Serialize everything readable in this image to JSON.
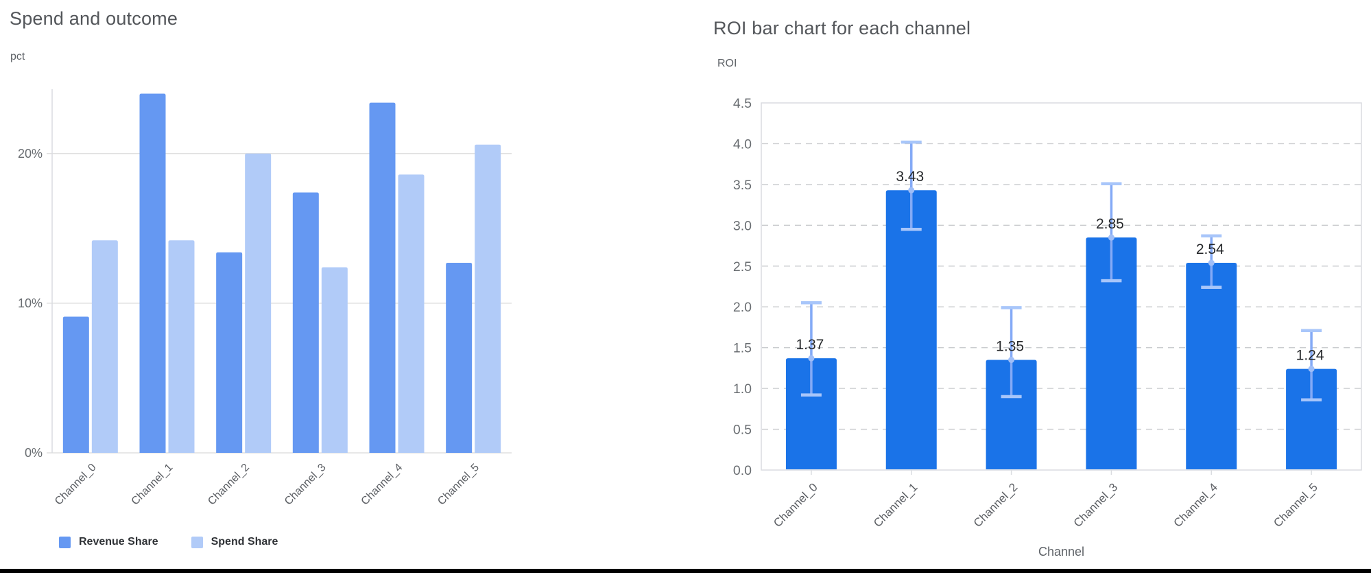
{
  "theme": {
    "background": "#FFFFFF",
    "title_color": "#53565A",
    "axis_unit_color": "#5F6368",
    "ytick_color": "#696D71",
    "xtick_color": "#5B5E63",
    "value_label_color": "#26282B",
    "legend_text_color": "#2F3236",
    "grid_color": "#E0E0E0",
    "axis_line_color": "#DADCE0",
    "dashed_grid_color": "#C9CBCE",
    "bottom_border_color": "#000000"
  },
  "chart_data": [
    {
      "type": "bar",
      "title": "Spend and outcome",
      "ylabel": "pct",
      "xlabel": "",
      "categories": [
        "Channel_0",
        "Channel_1",
        "Channel_2",
        "Channel_3",
        "Channel_4",
        "Channel_5"
      ],
      "series": [
        {
          "name": "Revenue Share",
          "color": "#6598F2",
          "values": [
            9.1,
            24.0,
            13.4,
            17.4,
            23.4,
            12.7
          ]
        },
        {
          "name": "Spend Share",
          "color": "#B1CBF8",
          "values": [
            14.2,
            14.2,
            20.0,
            12.4,
            18.6,
            20.6
          ]
        }
      ],
      "value_suffix": "%",
      "ylim": [
        0,
        24.3
      ],
      "yticks": [
        {
          "value": 0,
          "label": "0%"
        },
        {
          "value": 10,
          "label": "10%"
        },
        {
          "value": 20,
          "label": "20%"
        }
      ],
      "grid": "solid horizontal",
      "legend_position": "bottom-left"
    },
    {
      "type": "bar",
      "title": "ROI bar chart for each channel",
      "ylabel": "ROI",
      "xlabel": "Channel",
      "categories": [
        "Channel_0",
        "Channel_1",
        "Channel_2",
        "Channel_3",
        "Channel_4",
        "Channel_5"
      ],
      "series": [
        {
          "name": "ROI",
          "color": "#1A73E8",
          "values": [
            1.37,
            3.43,
            1.35,
            2.85,
            2.54,
            1.24
          ]
        }
      ],
      "value_labels": [
        "1.37",
        "3.43",
        "1.35",
        "2.85",
        "2.54",
        "1.24"
      ],
      "error_bars": {
        "low": [
          0.92,
          2.95,
          0.9,
          2.32,
          2.24,
          0.86
        ],
        "high": [
          2.05,
          4.02,
          1.99,
          3.51,
          2.87,
          1.71
        ],
        "line_color": "#84AAF6",
        "cap_color": "#A8C6FA",
        "marker_color": "#9FBEF8"
      },
      "ylim": [
        0,
        4.5
      ],
      "ytick_step": 0.5,
      "ytick_labels": [
        "0.0",
        "0.5",
        "1.0",
        "1.5",
        "2.0",
        "2.5",
        "3.0",
        "3.5",
        "4.0",
        "4.5"
      ],
      "grid": "dashed horizontal",
      "plot_border": true,
      "legend_position": "none"
    }
  ]
}
